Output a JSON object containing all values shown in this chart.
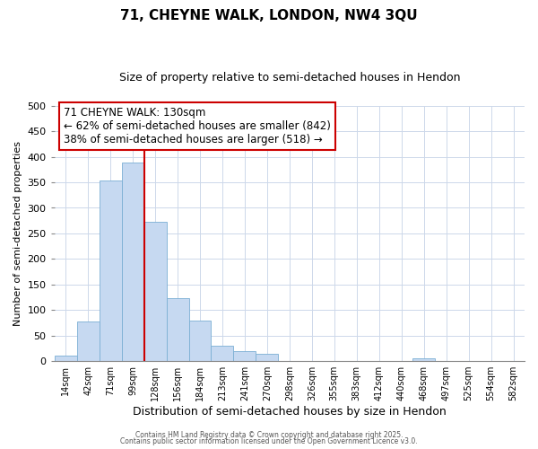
{
  "title": "71, CHEYNE WALK, LONDON, NW4 3QU",
  "subtitle": "Size of property relative to semi-detached houses in Hendon",
  "xlabel": "Distribution of semi-detached houses by size in Hendon",
  "ylabel": "Number of semi-detached properties",
  "bar_labels": [
    "14sqm",
    "42sqm",
    "71sqm",
    "99sqm",
    "128sqm",
    "156sqm",
    "184sqm",
    "213sqm",
    "241sqm",
    "270sqm",
    "298sqm",
    "326sqm",
    "355sqm",
    "383sqm",
    "412sqm",
    "440sqm",
    "468sqm",
    "497sqm",
    "525sqm",
    "554sqm",
    "582sqm"
  ],
  "bar_values": [
    10,
    78,
    353,
    388,
    272,
    124,
    80,
    30,
    20,
    14,
    0,
    0,
    0,
    0,
    0,
    0,
    5,
    0,
    0,
    0,
    0
  ],
  "bar_color": "#c6d9f1",
  "bar_edge_color": "#7bafd4",
  "vline_x": 3.5,
  "annotation_title": "71 CHEYNE WALK: 130sqm",
  "annotation_line1": "← 62% of semi-detached houses are smaller (842)",
  "annotation_line2": "38% of semi-detached houses are larger (518) →",
  "vline_color": "#cc0000",
  "annotation_box_color": "#ffffff",
  "annotation_box_edge": "#cc0000",
  "footer1": "Contains HM Land Registry data © Crown copyright and database right 2025.",
  "footer2": "Contains public sector information licensed under the Open Government Licence v3.0.",
  "ylim": [
    0,
    500
  ],
  "yticks": [
    0,
    50,
    100,
    150,
    200,
    250,
    300,
    350,
    400,
    450,
    500
  ],
  "figsize": [
    6.0,
    5.0
  ],
  "dpi": 100,
  "title_fontsize": 11,
  "subtitle_fontsize": 9,
  "ylabel_fontsize": 8,
  "xlabel_fontsize": 9,
  "tick_fontsize": 8,
  "xtick_fontsize": 7,
  "footer_fontsize": 5.5,
  "ann_fontsize": 8.5
}
